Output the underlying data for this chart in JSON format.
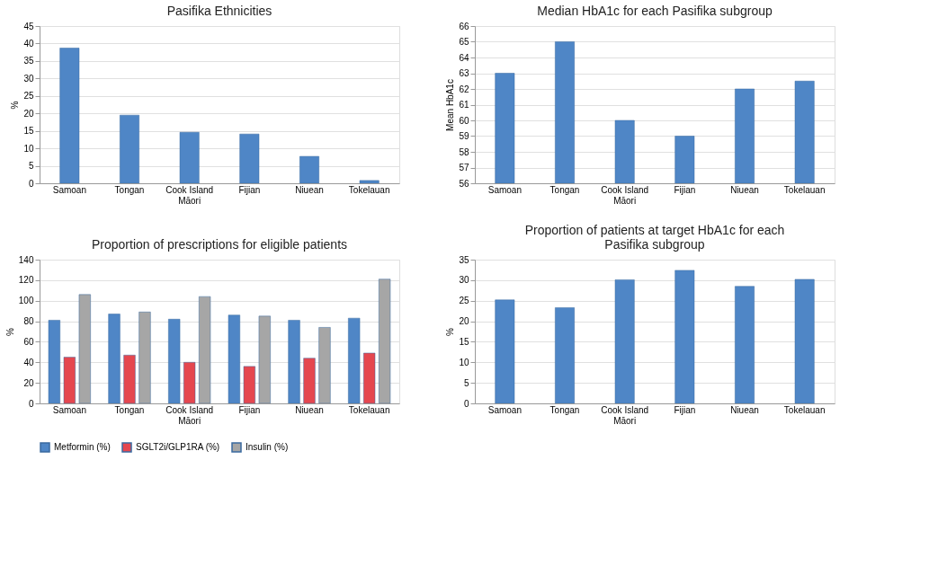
{
  "chart_data": [
    {
      "type": "bar",
      "title": "Pasifika Ethnicities",
      "ylabel": "%",
      "categories": [
        "Samoan",
        "Tongan",
        "Cook Island Māori",
        "Fijian",
        "Niuean",
        "Tokelauan"
      ],
      "values": [
        38.7,
        19.5,
        14.6,
        14.1,
        7.7,
        0.8
      ],
      "color": "#4f86c6",
      "ylim": [
        0,
        45
      ],
      "yticks": [
        0,
        5,
        10,
        15,
        20,
        25,
        30,
        35,
        40,
        45
      ],
      "grid": "y"
    },
    {
      "type": "bar",
      "title": "Median HbA1c for each Pasifika subgroup",
      "ylabel": "Mean HbA1c",
      "categories": [
        "Samoan",
        "Tongan",
        "Cook Island Māori",
        "Fijian",
        "Niuean",
        "Tokelauan"
      ],
      "values": [
        63,
        65,
        60,
        59,
        62,
        62.5
      ],
      "color": "#4f86c6",
      "ylim": [
        56,
        66
      ],
      "yticks": [
        56,
        57,
        58,
        59,
        60,
        61,
        62,
        63,
        64,
        65,
        66
      ],
      "grid": "y"
    },
    {
      "type": "bar",
      "title": "Proportion of prescriptions for eligible patients",
      "ylabel": "%",
      "categories": [
        "Samoan",
        "Tongan",
        "Cook Island Māori",
        "Fijian",
        "Niuean",
        "Tokelauan"
      ],
      "series": [
        {
          "name": "Metformin (%)",
          "color": "#4f86c6",
          "values": [
            81,
            87,
            82,
            86,
            81,
            83
          ]
        },
        {
          "name": "SGLT2i/GLP1RA (%)",
          "color": "#e5474f",
          "values": [
            45,
            47,
            40,
            36,
            44,
            49
          ]
        },
        {
          "name": "Insulin (%)",
          "color": "#a6a6a6",
          "values": [
            106,
            89,
            104,
            85,
            74,
            121
          ]
        }
      ],
      "ylim": [
        0,
        140
      ],
      "yticks": [
        0,
        20,
        40,
        60,
        80,
        100,
        120,
        140
      ],
      "grid": "y",
      "legend": "bottom"
    },
    {
      "type": "bar",
      "title": "Proportion of patients at target HbA1c for each Pasifika subgroup",
      "ylabel": "%",
      "categories": [
        "Samoan",
        "Tongan",
        "Cook Island Māori",
        "Fijian",
        "Niuean",
        "Tokelauan"
      ],
      "values": [
        25.2,
        23.3,
        30.1,
        32.4,
        28.5,
        30.2
      ],
      "color": "#4f86c6",
      "ylim": [
        0,
        35
      ],
      "yticks": [
        0,
        5,
        10,
        15,
        20,
        25,
        30,
        35
      ],
      "grid": "y"
    }
  ]
}
